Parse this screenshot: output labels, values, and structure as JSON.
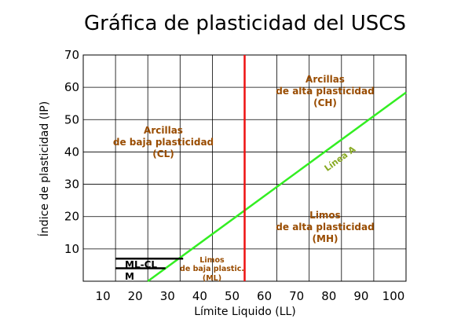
{
  "chart_data": {
    "type": "line",
    "title": "Gráfica de plasticidad del USCS",
    "xlabel": "Límite Liquido (LL)",
    "ylabel": "Índice de plasticidad (IP)",
    "xlim": [
      0,
      100
    ],
    "ylim": [
      0,
      70
    ],
    "xticks": [
      "10",
      "20",
      "30",
      "40",
      "50",
      "60",
      "70",
      "80",
      "90",
      "100"
    ],
    "yticks": [
      "10",
      "20",
      "30",
      "40",
      "50",
      "60",
      "70"
    ],
    "grid": true,
    "series": [
      {
        "name": "Línea A",
        "x": [
          20,
          100
        ],
        "y": [
          0,
          58.4
        ],
        "color": "#33ee22"
      },
      {
        "x": [
          50,
          50
        ],
        "y": [
          0,
          70
        ],
        "color": "#ee1111"
      },
      {
        "x": [
          10,
          30.96
        ],
        "y": [
          7,
          7
        ],
        "color": "#000000"
      },
      {
        "x": [
          10,
          25.48
        ],
        "y": [
          4,
          4
        ],
        "color": "#000000"
      }
    ],
    "annotations": {
      "ch": [
        "Arcillas",
        "de alta plasticidad",
        "(CH)"
      ],
      "cl": [
        "Arcillas",
        "de baja plasticidad",
        "(CL)"
      ],
      "mh": [
        "Limos",
        "de alta plasticidad",
        "(MH)"
      ],
      "ml": [
        "Limos",
        "de baja plastic.",
        "(ML)"
      ],
      "mlcl": "ML-CL",
      "m": "M",
      "linea_a": "Línea A"
    },
    "colors": {
      "region_text": "#994c00",
      "a_line": "#33ee22",
      "ll50": "#ee1111",
      "linea_a_text": "#88aa22"
    }
  }
}
